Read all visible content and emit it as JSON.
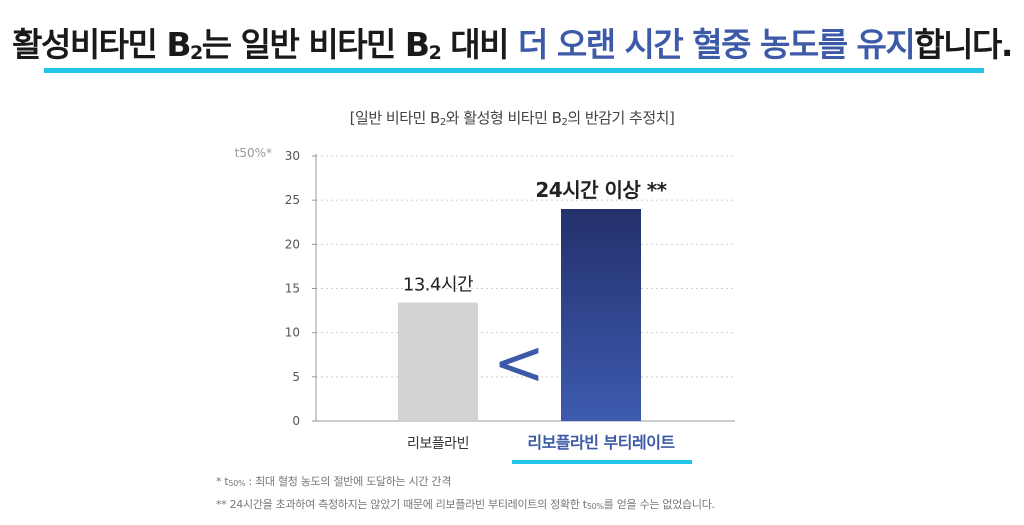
{
  "headline": {
    "part1": "활성비타민 B",
    "sub1": "2",
    "part2": "는 일반 비타민 B",
    "sub2": "2",
    "part3": " 대비 ",
    "highlight": "더 오랜 시간 혈중 농도를 유지",
    "part4": "합니다."
  },
  "chart_title": {
    "part1": "[일반 비타민 B",
    "sub1": "2",
    "part2": "와 활성형 비타민 B",
    "sub2": "2",
    "part3": "의 반감기 추정치]"
  },
  "chart_data": {
    "type": "bar",
    "ylabel": "t50%*",
    "ylim": [
      0,
      30
    ],
    "yticks": [
      0,
      5,
      10,
      15,
      20,
      25,
      30
    ],
    "grid": true,
    "categories": [
      "리보플라빈",
      "리보플라빈 부티레이트"
    ],
    "values": [
      13.4,
      24
    ],
    "data_labels": [
      "13.4시간",
      "24시간 이상 **"
    ],
    "comparison_symbol": "<",
    "colors": [
      "#d2d2d4",
      "#3b56a4"
    ]
  },
  "notes": {
    "note1_prefix": "* t",
    "note1_sub": "50%",
    "note1_rest": " : 최대 혈청 농도의 절반에 도달하는 시간 간격",
    "note2_prefix": "** 24시간을 초과하여 측정하지는 않았기 때문에 리보플라빈 부티레이트의 정확한 t",
    "note2_sub": "50%",
    "note2_rest": "를 얻을 수는 없었습니다."
  },
  "colors": {
    "accent_cyan": "#22c4e8",
    "highlight_blue": "#3d5aa8"
  }
}
